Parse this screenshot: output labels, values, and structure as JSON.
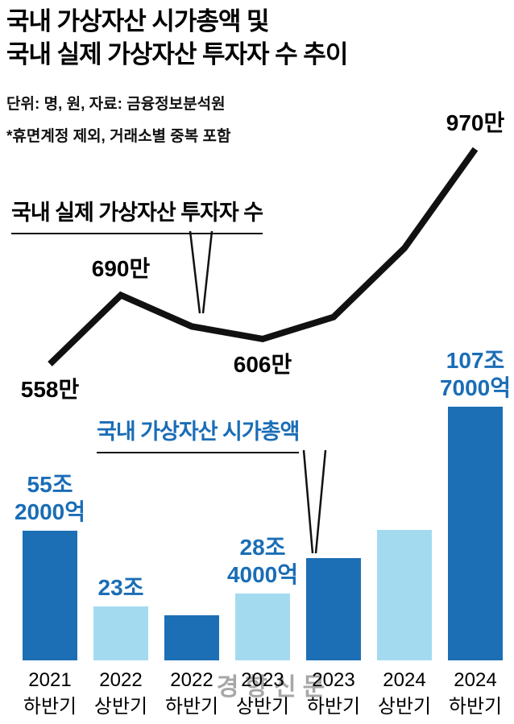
{
  "title": {
    "line1": "국내 가상자산 시가총액 및",
    "line2": "국내 실제 가상자산 투자자 수 추이"
  },
  "source": {
    "line1": "단위: 명, 원, 자료: 금융정보분석원",
    "line2": "*휴면계정 제외, 거래소별 중복 포함"
  },
  "watermark": "경향신문",
  "colors": {
    "bar_dark": "#1c6fb5",
    "bar_light": "#a4daf0",
    "accent_text": "#1a6db6",
    "line": "#111111"
  },
  "chart_data": [
    {
      "type": "line",
      "name": "국내 실제 가상자산 투자자 수",
      "unit": "만 (명)",
      "categories": [
        "2021 하반기",
        "2022 상반기",
        "2022 하반기",
        "2023 상반기",
        "2023 하반기",
        "2024 상반기",
        "2024 하반기"
      ],
      "values": [
        558,
        690,
        630,
        606,
        648,
        780,
        970
      ],
      "point_labels": [
        {
          "index": 0,
          "text": "558만",
          "position": "below"
        },
        {
          "index": 1,
          "text": "690만",
          "position": "above"
        },
        {
          "index": 3,
          "text": "606만",
          "position": "below"
        },
        {
          "index": 6,
          "text": "970만",
          "position": "above"
        }
      ],
      "legend_position": "callout-above-line",
      "grid": false
    },
    {
      "type": "bar",
      "name": "국내 가상자산 시가총액",
      "unit": "조 원",
      "categories": [
        "2021 하반기",
        "2022 상반기",
        "2022 하반기",
        "2023 상반기",
        "2023 하반기",
        "2024 상반기",
        "2024 하반기"
      ],
      "values": [
        55.2,
        23,
        19,
        28.4,
        43.5,
        55.5,
        107.7
      ],
      "bar_labels": [
        "55조\n2000억",
        "23조",
        "",
        "28조\n4000억",
        "",
        "",
        "107조\n7000억"
      ],
      "legend_position": "callout-above-bars",
      "grid": false,
      "ylim": [
        0,
        110
      ]
    }
  ]
}
